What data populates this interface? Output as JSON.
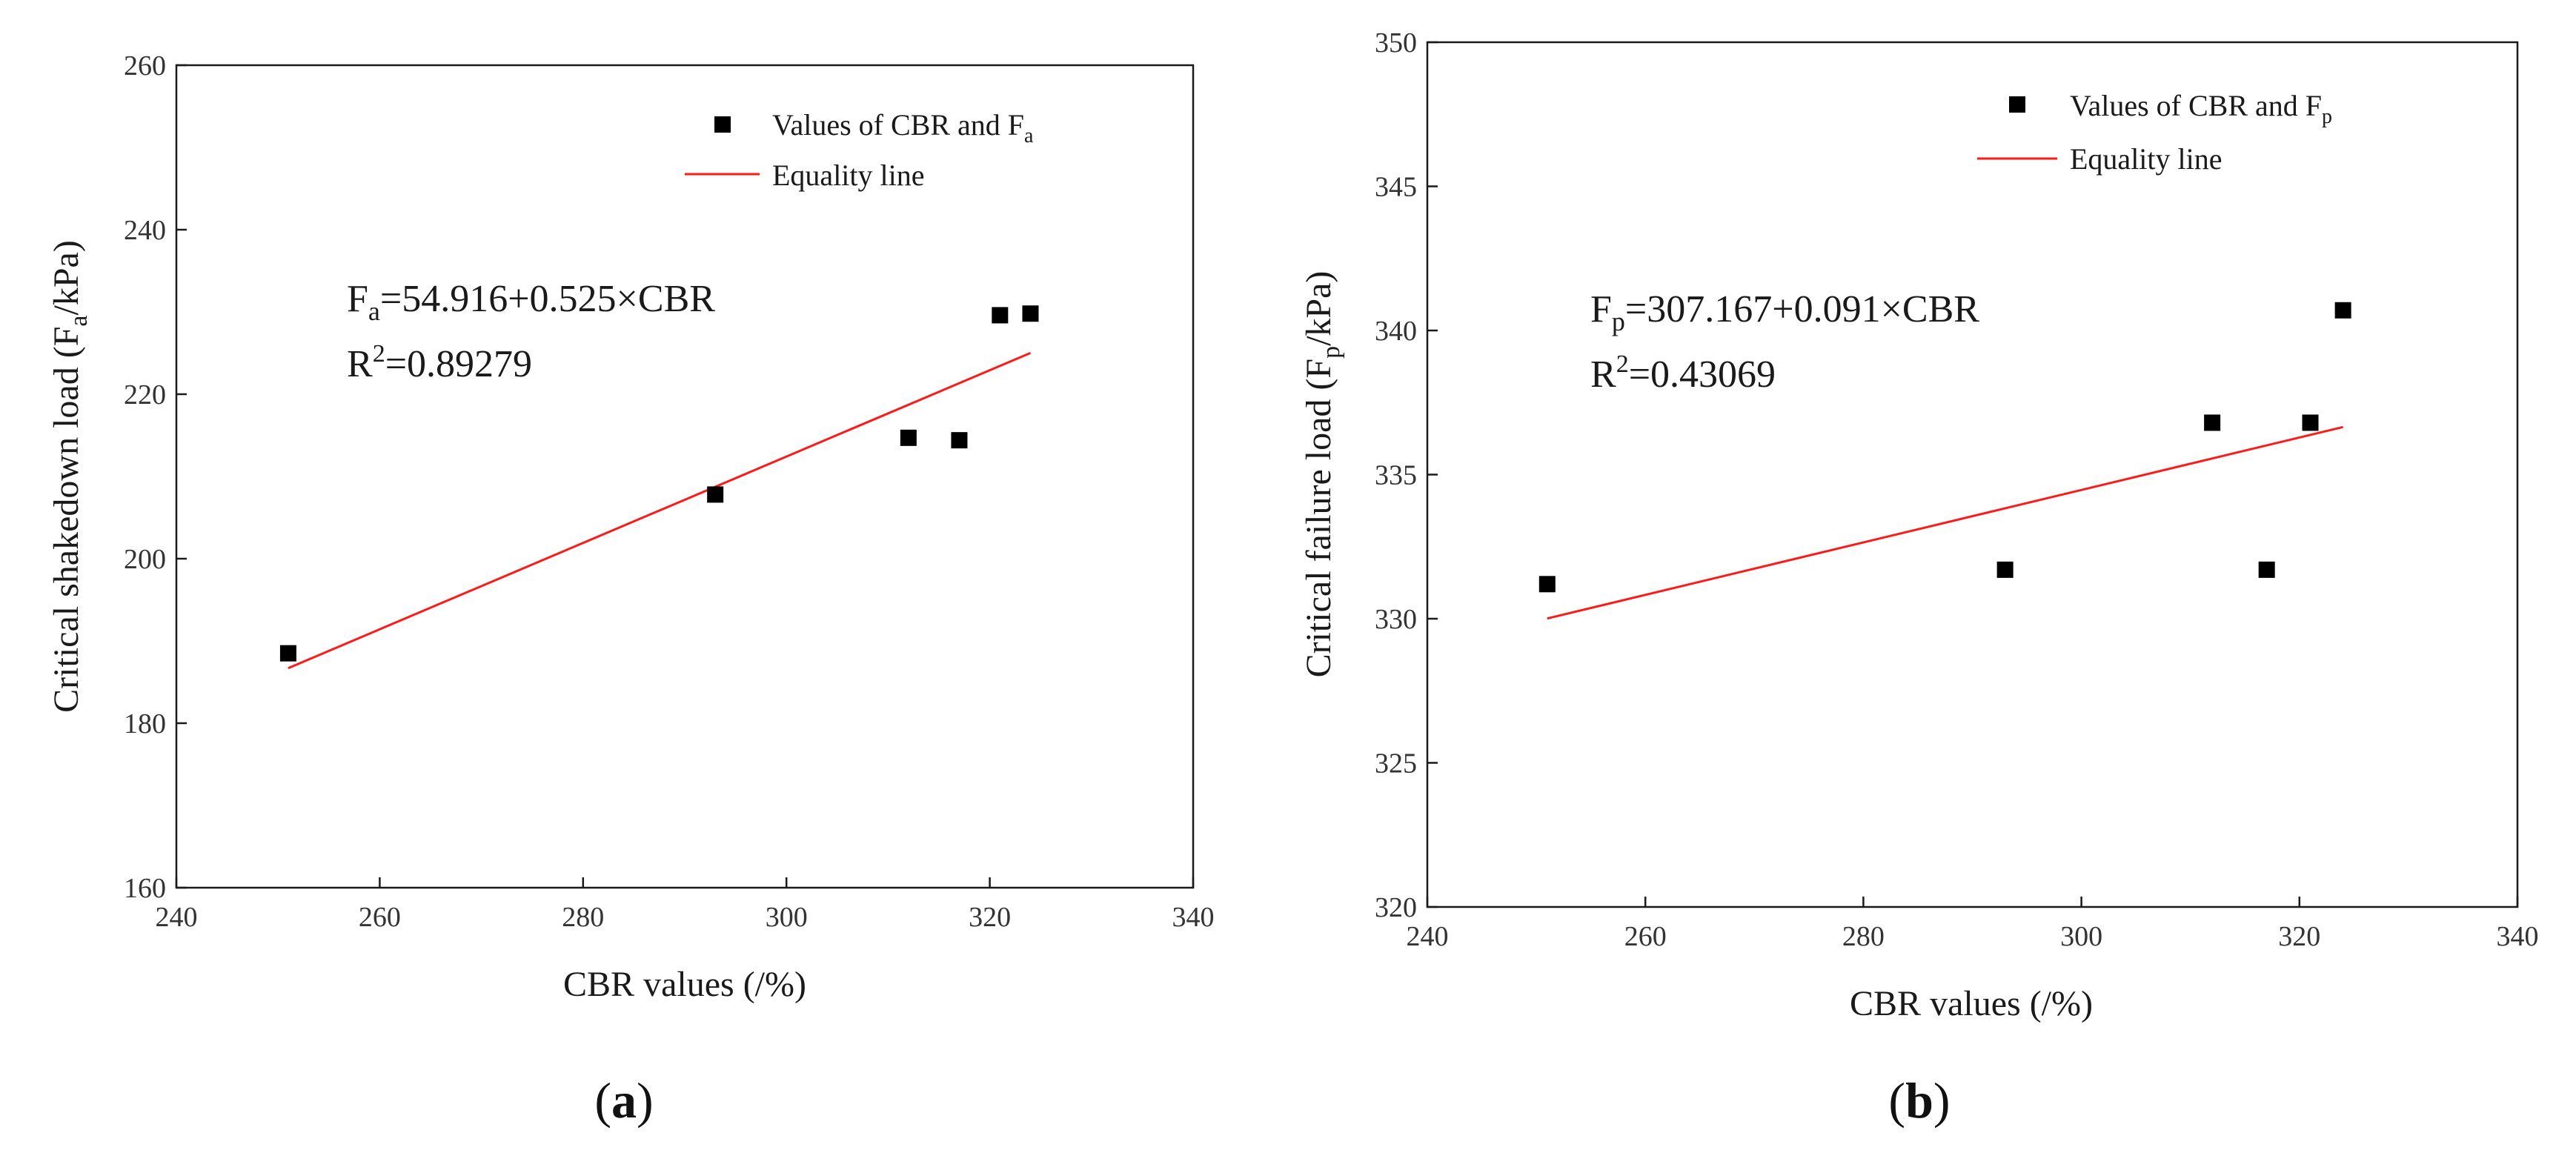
{
  "chart_data": [
    {
      "type": "scatter",
      "panel": "(a)",
      "panel_open": "(",
      "panel_letter": "a",
      "panel_close": ")",
      "xlabel": "CBR values (/%)",
      "ylabel_main": "Critical shakedown load (F",
      "ylabel_sub": "a",
      "ylabel_tail": "/kPa)",
      "xlim": [
        240,
        340
      ],
      "ylim": [
        160,
        260
      ],
      "xticks": [
        240,
        260,
        280,
        300,
        320,
        340
      ],
      "yticks": [
        160,
        180,
        200,
        220,
        240,
        260
      ],
      "points": {
        "x": [
          251,
          293,
          312,
          317,
          321,
          324
        ],
        "y": [
          188.5,
          207.8,
          214.7,
          214.4,
          229.6,
          229.8
        ]
      },
      "fit_line": {
        "x": [
          251,
          324
        ],
        "intercept": 54.916,
        "slope": 0.525
      },
      "legend": {
        "scatter_main": "Values of CBR and F",
        "scatter_sub": "a",
        "line": "Equality line"
      },
      "equation": {
        "f_main": "F",
        "f_sub": "a",
        "rhs": "=54.916+0.525×CBR",
        "r_main": "R",
        "r_sup": "2",
        "r_rhs": "=0.89279"
      },
      "colors": {
        "line": "#ff1a1a",
        "marker": "#000000"
      }
    },
    {
      "type": "scatter",
      "panel": "(b)",
      "panel_open": "(",
      "panel_letter": "b",
      "panel_close": ")",
      "xlabel": "CBR values (/%)",
      "ylabel_main": "Critical failure load (F",
      "ylabel_sub": "p",
      "ylabel_tail": "/kPa)",
      "xlim": [
        240,
        340
      ],
      "ylim": [
        320,
        350
      ],
      "xticks": [
        240,
        260,
        280,
        300,
        320,
        340
      ],
      "yticks": [
        320,
        325,
        330,
        335,
        340,
        345,
        350
      ],
      "points": {
        "x": [
          251,
          293,
          312,
          317,
          321,
          324
        ],
        "y": [
          331.2,
          331.7,
          336.8,
          331.7,
          336.8,
          340.7
        ]
      },
      "fit_line": {
        "x": [
          251,
          324
        ],
        "intercept": 307.167,
        "slope": 0.091
      },
      "legend": {
        "scatter_main": "Values of CBR and F",
        "scatter_sub": "p",
        "line": "Equality line"
      },
      "equation": {
        "f_main": "F",
        "f_sub": "p",
        "rhs": "=307.167+0.091×CBR",
        "r_main": "R",
        "r_sup": "2",
        "r_rhs": "=0.43069"
      },
      "colors": {
        "line": "#ff1a1a",
        "marker": "#000000"
      }
    }
  ]
}
